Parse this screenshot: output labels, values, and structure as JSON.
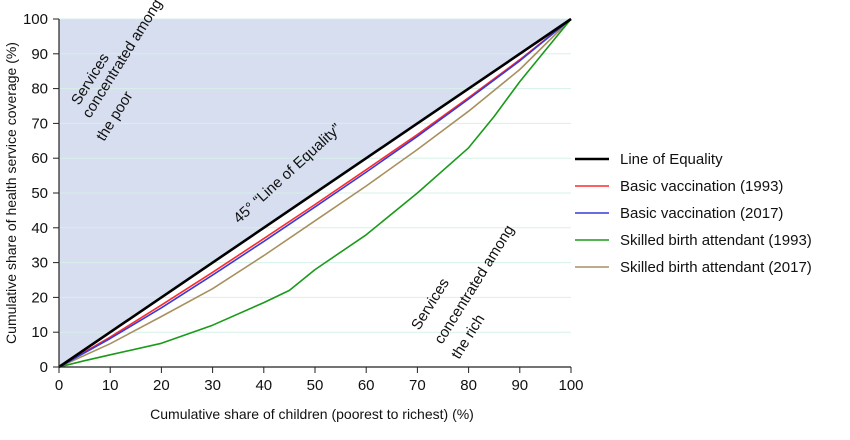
{
  "chart_data": {
    "type": "line",
    "title": "",
    "xlabel": "Cumulative share of children (poorest to richest) (%)",
    "ylabel": "Cumulative share of health service coverage (%)",
    "xlim": [
      0,
      100
    ],
    "ylim": [
      0,
      100
    ],
    "x_ticks": [
      0,
      10,
      20,
      30,
      40,
      50,
      60,
      70,
      80,
      90,
      100
    ],
    "y_ticks": [
      0,
      10,
      20,
      30,
      40,
      50,
      60,
      70,
      80,
      90,
      100
    ],
    "grid": true,
    "legend_position": "right",
    "colors": {
      "upper_region_fill": "#d6deef",
      "grid": "#d7f0e9",
      "axis": "#222222"
    },
    "series": [
      {
        "name": "Line of Equality",
        "color": "#000000",
        "x": [
          0,
          100
        ],
        "y": [
          0,
          100
        ]
      },
      {
        "name": "Basic vaccination (1993)",
        "color": "#ff2a2a",
        "x": [
          0,
          10,
          20,
          30,
          40,
          50,
          60,
          70,
          80,
          90,
          100
        ],
        "y": [
          0,
          8.6,
          17.8,
          27.2,
          36.9,
          46.7,
          56.7,
          66.8,
          77.4,
          88.3,
          100
        ]
      },
      {
        "name": "Basic vaccination (2017)",
        "color": "#3a3ad8",
        "x": [
          0,
          10,
          20,
          30,
          40,
          50,
          60,
          70,
          80,
          90,
          100
        ],
        "y": [
          0,
          8.2,
          17.0,
          26.4,
          36.1,
          46.0,
          56.0,
          66.3,
          77.0,
          88.0,
          100
        ]
      },
      {
        "name": "Skilled birth attendant (1993)",
        "color": "#1a9a1a",
        "x": [
          0,
          5,
          10,
          20,
          30,
          40,
          45,
          50,
          60,
          70,
          80,
          85,
          90,
          95,
          100
        ],
        "y": [
          0,
          1.8,
          3.5,
          6.8,
          12.0,
          18.5,
          22.0,
          28.0,
          38.0,
          50.0,
          63.0,
          72.0,
          82.0,
          91.0,
          100
        ]
      },
      {
        "name": "Skilled birth attendant (2017)",
        "color": "#a89060",
        "x": [
          0,
          10,
          20,
          30,
          40,
          50,
          60,
          70,
          80,
          90,
          100
        ],
        "y": [
          0,
          6.7,
          14.5,
          22.5,
          32.0,
          42.0,
          52.0,
          62.5,
          73.5,
          85.5,
          100
        ]
      }
    ],
    "annotations": [
      {
        "id": "poor",
        "lines": [
          "Services",
          "concentrated among",
          "the poor"
        ]
      },
      {
        "id": "rich",
        "lines": [
          "Services",
          "concentrated among",
          "the rich"
        ]
      },
      {
        "id": "equality",
        "text": "45° “Line of Equality”"
      }
    ]
  }
}
